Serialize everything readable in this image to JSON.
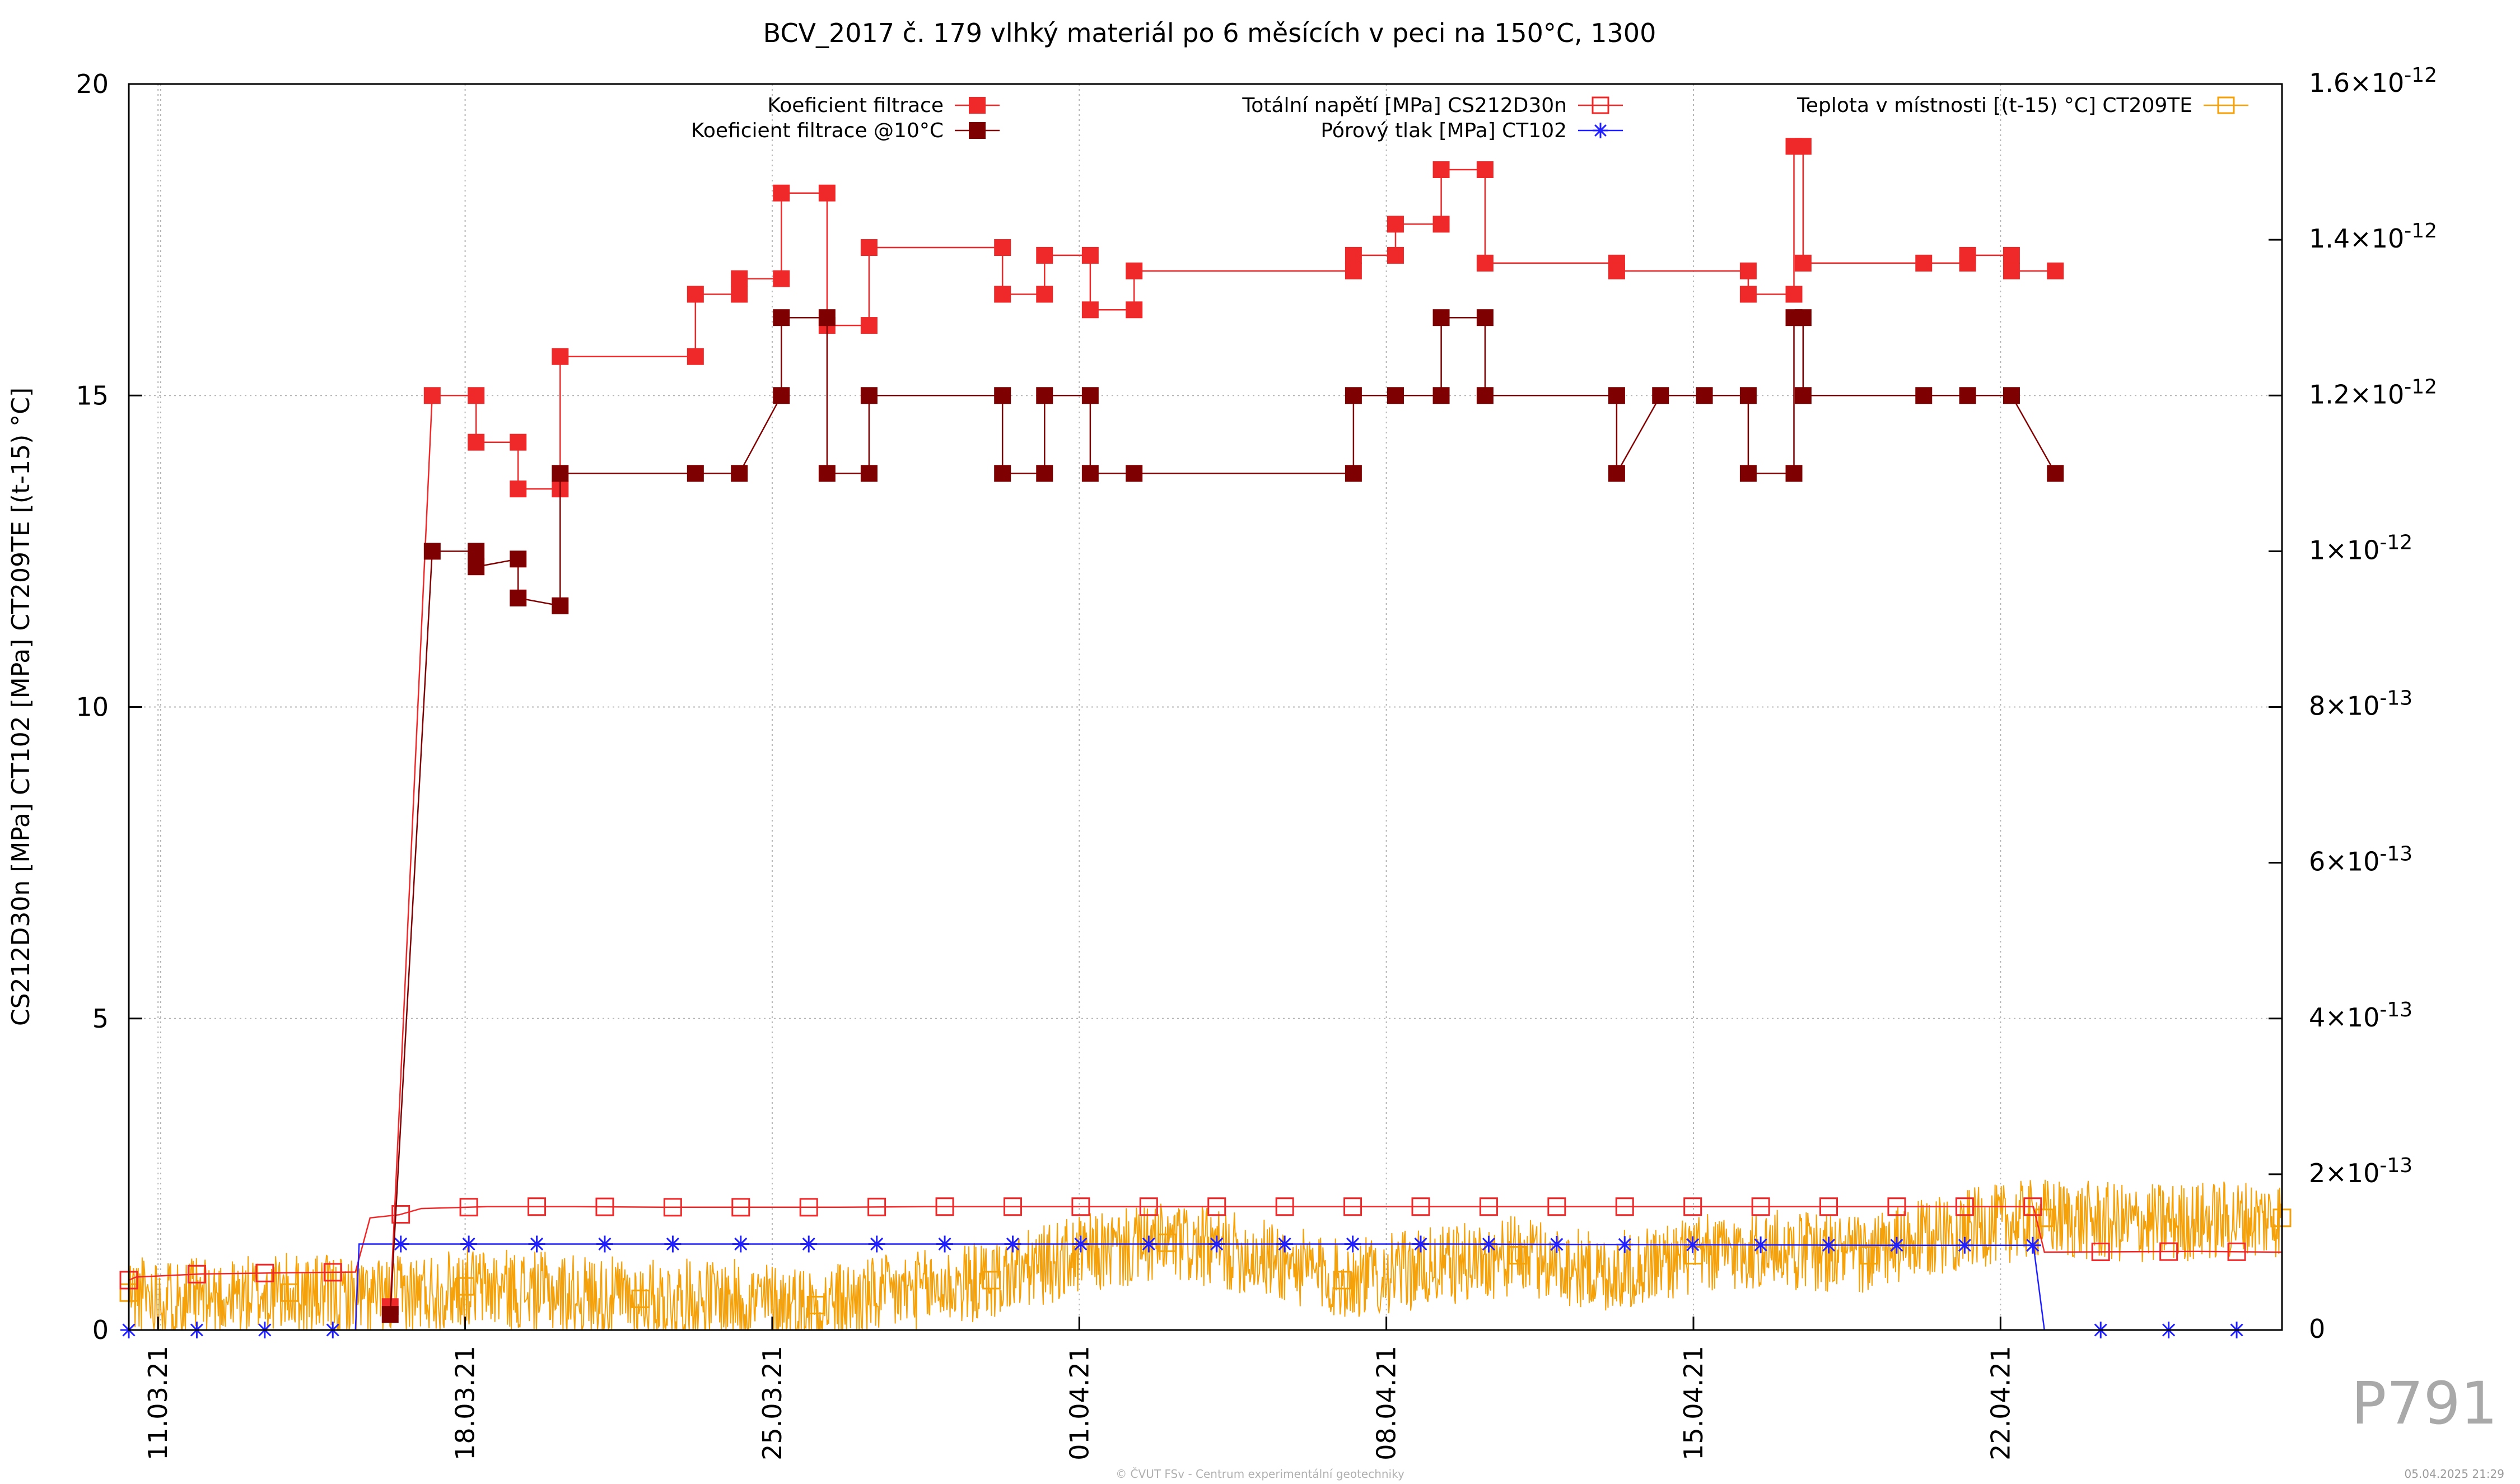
{
  "chart_data": {
    "type": "line",
    "title": "BCV_2017 č. 179 vlhký materiál po 6 měsících v peci na 150°C, 1300",
    "ylabel": "CS212D30n [MPa] CT102 [MPa] CT209TE [(t-15) °C]",
    "y2label": "",
    "ylim": [
      0,
      20
    ],
    "y2lim": [
      0,
      1.6e-12
    ],
    "xlim": [
      "2021-03-10 08:00",
      "2021-04-28 10:00"
    ],
    "grid": true,
    "legend_position": "top",
    "x_tick_labels": [
      "11.03.21",
      "18.03.21",
      "25.03.21",
      "01.04.21",
      "08.04.21",
      "15.04.21",
      "22.04.21"
    ],
    "y_tick_labels": [
      "0",
      "5",
      "10",
      "15",
      "20"
    ],
    "y2_tick_labels": [
      {
        "m": "0",
        "e": ""
      },
      {
        "m": "2×10",
        "e": "-13"
      },
      {
        "m": "4×10",
        "e": "-13"
      },
      {
        "m": "6×10",
        "e": "-13"
      },
      {
        "m": "8×10",
        "e": "-13"
      },
      {
        "m": "1×10",
        "e": "-12"
      },
      {
        "m": "1.2×10",
        "e": "-12"
      },
      {
        "m": "1.4×10",
        "e": "-12"
      },
      {
        "m": "1.6×10",
        "e": "-12"
      }
    ],
    "series": [
      {
        "name": "Koeficient filtrace",
        "axis": "y2",
        "color": "#ef2929",
        "marker": "filled-square",
        "style": "steps",
        "points": [
          [
            "2021-03-16 07:00",
            3e-14
          ],
          [
            "2021-03-17 06:00",
            1.2e-12
          ],
          [
            "2021-03-18 06:00",
            1.2e-12
          ],
          [
            "2021-03-18 06:00",
            1.14e-12
          ],
          [
            "2021-03-19 05:00",
            1.14e-12
          ],
          [
            "2021-03-19 05:00",
            1.08e-12
          ],
          [
            "2021-03-20 04:00",
            1.08e-12
          ],
          [
            "2021-03-20 04:00",
            1.25e-12
          ],
          [
            "2021-03-23 06:00",
            1.25e-12
          ],
          [
            "2021-03-23 06:00",
            1.33e-12
          ],
          [
            "2021-03-24 06:00",
            1.33e-12
          ],
          [
            "2021-03-24 06:00",
            1.35e-12
          ],
          [
            "2021-03-25 05:00",
            1.35e-12
          ],
          [
            "2021-03-25 05:00",
            1.46e-12
          ],
          [
            "2021-03-26 06:00",
            1.46e-12
          ],
          [
            "2021-03-26 06:00",
            1.29e-12
          ],
          [
            "2021-03-27 05:00",
            1.29e-12
          ],
          [
            "2021-03-27 05:00",
            1.39e-12
          ],
          [
            "2021-03-30 06:00",
            1.39e-12
          ],
          [
            "2021-03-30 06:00",
            1.33e-12
          ],
          [
            "2021-03-31 05:00",
            1.33e-12
          ],
          [
            "2021-03-31 05:00",
            1.38e-12
          ],
          [
            "2021-04-01 06:00",
            1.38e-12
          ],
          [
            "2021-04-01 06:00",
            1.31e-12
          ],
          [
            "2021-04-02 06:00",
            1.31e-12
          ],
          [
            "2021-04-02 06:00",
            1.36e-12
          ],
          [
            "2021-04-07 06:00",
            1.36e-12
          ],
          [
            "2021-04-07 06:00",
            1.38e-12
          ],
          [
            "2021-04-08 05:00",
            1.38e-12
          ],
          [
            "2021-04-08 05:00",
            1.42e-12
          ],
          [
            "2021-04-09 06:00",
            1.42e-12
          ],
          [
            "2021-04-09 06:00",
            1.49e-12
          ],
          [
            "2021-04-10 06:00",
            1.49e-12
          ],
          [
            "2021-04-10 06:00",
            1.37e-12
          ],
          [
            "2021-04-13 06:00",
            1.37e-12
          ],
          [
            "2021-04-13 06:00",
            1.36e-12
          ],
          [
            "2021-04-16 06:00",
            1.36e-12
          ],
          [
            "2021-04-16 06:00",
            1.33e-12
          ],
          [
            "2021-04-17 07:00",
            1.33e-12
          ],
          [
            "2021-04-17 07:00",
            1.52e-12
          ],
          [
            "2021-04-17 12:00",
            1.52e-12
          ],
          [
            "2021-04-17 12:00",
            1.37e-12
          ],
          [
            "2021-04-20 06:00",
            1.37e-12
          ],
          [
            "2021-04-21 06:00",
            1.37e-12
          ],
          [
            "2021-04-21 06:00",
            1.38e-12
          ],
          [
            "2021-04-22 06:00",
            1.38e-12
          ],
          [
            "2021-04-22 06:00",
            1.36e-12
          ],
          [
            "2021-04-23 06:00",
            1.36e-12
          ]
        ]
      },
      {
        "name": "Koeficient filtrace @10°C",
        "axis": "y2",
        "color": "#7f0000",
        "marker": "filled-square",
        "style": "steps",
        "points": [
          [
            "2021-03-16 07:00",
            2e-14
          ],
          [
            "2021-03-17 06:00",
            1e-12
          ],
          [
            "2021-03-18 06:00",
            1e-12
          ],
          [
            "2021-03-18 06:00",
            9.8e-13
          ],
          [
            "2021-03-19 05:00",
            9.9e-13
          ],
          [
            "2021-03-19 05:00",
            9.4e-13
          ],
          [
            "2021-03-20 04:00",
            9.3e-13
          ],
          [
            "2021-03-20 04:00",
            1.1e-12
          ],
          [
            "2021-03-23 06:00",
            1.1e-12
          ],
          [
            "2021-03-24 06:00",
            1.1e-12
          ],
          [
            "2021-03-25 05:00",
            1.2e-12
          ],
          [
            "2021-03-25 05:00",
            1.3e-12
          ],
          [
            "2021-03-26 06:00",
            1.3e-12
          ],
          [
            "2021-03-26 06:00",
            1.1e-12
          ],
          [
            "2021-03-27 05:00",
            1.1e-12
          ],
          [
            "2021-03-27 05:00",
            1.2e-12
          ],
          [
            "2021-03-30 06:00",
            1.2e-12
          ],
          [
            "2021-03-30 06:00",
            1.1e-12
          ],
          [
            "2021-03-31 05:00",
            1.1e-12
          ],
          [
            "2021-03-31 05:00",
            1.2e-12
          ],
          [
            "2021-04-01 06:00",
            1.2e-12
          ],
          [
            "2021-04-01 06:00",
            1.1e-12
          ],
          [
            "2021-04-02 06:00",
            1.1e-12
          ],
          [
            "2021-04-07 06:00",
            1.1e-12
          ],
          [
            "2021-04-07 06:00",
            1.2e-12
          ],
          [
            "2021-04-08 05:00",
            1.2e-12
          ],
          [
            "2021-04-09 06:00",
            1.2e-12
          ],
          [
            "2021-04-09 06:00",
            1.3e-12
          ],
          [
            "2021-04-10 06:00",
            1.3e-12
          ],
          [
            "2021-04-10 06:00",
            1.2e-12
          ],
          [
            "2021-04-13 06:00",
            1.2e-12
          ],
          [
            "2021-04-13 06:00",
            1.1e-12
          ],
          [
            "2021-04-14 06:00",
            1.2e-12
          ],
          [
            "2021-04-15 06:00",
            1.2e-12
          ],
          [
            "2021-04-16 06:00",
            1.2e-12
          ],
          [
            "2021-04-16 06:00",
            1.1e-12
          ],
          [
            "2021-04-17 07:00",
            1.1e-12
          ],
          [
            "2021-04-17 07:00",
            1.3e-12
          ],
          [
            "2021-04-17 12:00",
            1.3e-12
          ],
          [
            "2021-04-17 12:00",
            1.2e-12
          ],
          [
            "2021-04-20 06:00",
            1.2e-12
          ],
          [
            "2021-04-21 06:00",
            1.2e-12
          ],
          [
            "2021-04-22 06:00",
            1.2e-12
          ],
          [
            "2021-04-23 06:00",
            1.1e-12
          ]
        ]
      },
      {
        "name": "Totální napětí [MPa] CS212D30n",
        "axis": "y",
        "color": "#ef2929",
        "marker": "open-square",
        "style": "line",
        "points": [
          [
            "2021-03-10 08:00",
            0.8
          ],
          [
            "2021-03-10 12:00",
            0.85
          ],
          [
            "2021-03-12 00:00",
            0.9
          ],
          [
            "2021-03-14 00:00",
            0.92
          ],
          [
            "2021-03-15 12:00",
            0.93
          ],
          [
            "2021-03-15 20:00",
            1.8
          ],
          [
            "2021-03-16 12:00",
            1.85
          ],
          [
            "2021-03-17 00:00",
            1.95
          ],
          [
            "2021-03-18 12:00",
            1.98
          ],
          [
            "2021-03-20 12:00",
            1.98
          ],
          [
            "2021-03-22 12:00",
            1.97
          ],
          [
            "2021-03-24 12:00",
            1.97
          ],
          [
            "2021-03-26 12:00",
            1.97
          ],
          [
            "2021-03-28 12:00",
            1.98
          ],
          [
            "2021-03-30 12:00",
            1.98
          ],
          [
            "2021-04-01 12:00",
            1.98
          ],
          [
            "2021-04-03 12:00",
            1.98
          ],
          [
            "2021-04-05 12:00",
            1.98
          ],
          [
            "2021-04-07 12:00",
            1.98
          ],
          [
            "2021-04-09 12:00",
            1.98
          ],
          [
            "2021-04-11 12:00",
            1.98
          ],
          [
            "2021-04-13 12:00",
            1.98
          ],
          [
            "2021-04-15 12:00",
            1.98
          ],
          [
            "2021-04-17 12:00",
            1.98
          ],
          [
            "2021-04-19 12:00",
            1.98
          ],
          [
            "2021-04-21 12:00",
            1.98
          ],
          [
            "2021-04-22 18:00",
            1.98
          ],
          [
            "2021-04-23 00:00",
            1.25
          ],
          [
            "2021-04-26 12:00",
            1.26
          ],
          [
            "2021-04-28 10:00",
            1.25
          ]
        ]
      },
      {
        "name": "Pórový tlak [MPa] CT102",
        "axis": "y",
        "color": "#1f1fff",
        "marker": "asterisk",
        "style": "line",
        "points": [
          [
            "2021-03-10 08:00",
            0.0
          ],
          [
            "2021-03-15 12:00",
            0.0
          ],
          [
            "2021-03-15 14:00",
            1.38
          ],
          [
            "2021-03-20 12:00",
            1.38
          ],
          [
            "2021-03-25 12:00",
            1.38
          ],
          [
            "2021-03-30 12:00",
            1.38
          ],
          [
            "2021-04-04 12:00",
            1.38
          ],
          [
            "2021-04-09 12:00",
            1.38
          ],
          [
            "2021-04-14 12:00",
            1.37
          ],
          [
            "2021-04-19 12:00",
            1.36
          ],
          [
            "2021-04-22 18:00",
            1.36
          ],
          [
            "2021-04-23 00:00",
            0.0
          ],
          [
            "2021-04-28 10:00",
            0.0
          ]
        ]
      },
      {
        "name": "Teplota v místnosti [(t-15) °C] CT209TE",
        "axis": "y",
        "color": "#f5a10a",
        "marker": "open-square",
        "style": "noisy-line",
        "points": [
          [
            "2021-03-10 08:00",
            0.6
          ],
          [
            "2021-03-12 00:00",
            0.5
          ],
          [
            "2021-03-14 00:00",
            0.6
          ],
          [
            "2021-03-16 00:00",
            0.5
          ],
          [
            "2021-03-18 00:00",
            0.7
          ],
          [
            "2021-03-20 00:00",
            0.6
          ],
          [
            "2021-03-22 00:00",
            0.5
          ],
          [
            "2021-03-24 00:00",
            0.5
          ],
          [
            "2021-03-26 00:00",
            0.4
          ],
          [
            "2021-03-28 00:00",
            0.6
          ],
          [
            "2021-03-30 00:00",
            0.8
          ],
          [
            "2021-04-01 00:00",
            1.2
          ],
          [
            "2021-04-03 00:00",
            1.4
          ],
          [
            "2021-04-05 00:00",
            1.2
          ],
          [
            "2021-04-07 00:00",
            0.8
          ],
          [
            "2021-04-09 00:00",
            1.0
          ],
          [
            "2021-04-11 00:00",
            1.2
          ],
          [
            "2021-04-13 00:00",
            0.9
          ],
          [
            "2021-04-15 00:00",
            1.2
          ],
          [
            "2021-04-17 00:00",
            1.3
          ],
          [
            "2021-04-19 00:00",
            1.2
          ],
          [
            "2021-04-21 00:00",
            1.6
          ],
          [
            "2021-04-23 00:00",
            1.8
          ],
          [
            "2021-04-25 00:00",
            1.7
          ],
          [
            "2021-04-28 10:00",
            1.8
          ]
        ]
      }
    ]
  },
  "footer": {
    "credit": "© ČVUT FSv - Centrum experimentální geotechniky",
    "watermark": "P791",
    "timestamp": "05.04.2025 21:29"
  }
}
